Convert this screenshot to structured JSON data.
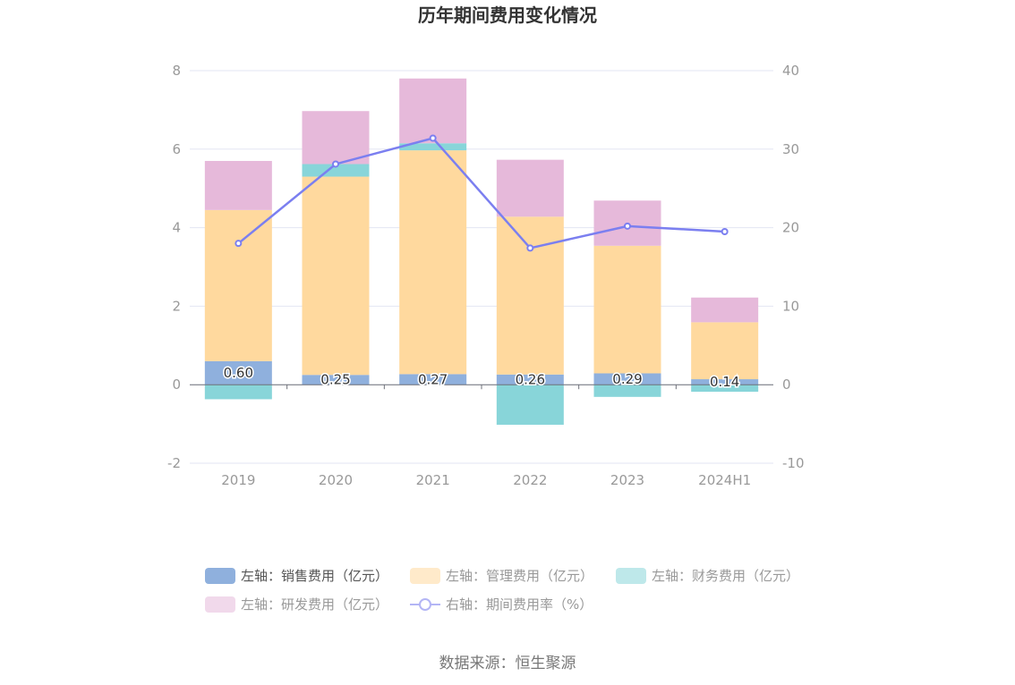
{
  "chart_data": {
    "type": "bar",
    "title": "历年期间费用变化情况",
    "categories": [
      "2019",
      "2020",
      "2021",
      "2022",
      "2023",
      "2024H1"
    ],
    "y_left": {
      "ylim": [
        -2,
        8
      ],
      "ticks": [
        "-2",
        "0",
        "2",
        "4",
        "6",
        "8"
      ]
    },
    "y_right": {
      "ylim": [
        -10,
        40
      ],
      "ticks": [
        "-10",
        "0",
        "10",
        "20",
        "30",
        "40"
      ]
    },
    "series": [
      {
        "name": "左轴：销售费用（亿元）",
        "type": "bar",
        "axis": "left",
        "color": "#8fb0dd",
        "values": [
          0.6,
          0.25,
          0.27,
          0.26,
          0.29,
          0.14
        ],
        "labels": [
          "0.60",
          "0.25",
          "0.27",
          "0.26",
          "0.29",
          "0.14"
        ]
      },
      {
        "name": "左轴：管理费用（亿元）",
        "type": "bar",
        "axis": "left",
        "color": "#ffd99e",
        "values": [
          3.85,
          5.05,
          5.7,
          4.02,
          3.25,
          1.45
        ]
      },
      {
        "name": "左轴：财务费用（亿元）",
        "type": "bar",
        "axis": "left",
        "color": "#88d5d9",
        "values": [
          -0.37,
          0.32,
          0.18,
          -1.02,
          -0.31,
          -0.18
        ]
      },
      {
        "name": "左轴：研发费用（亿元）",
        "type": "bar",
        "axis": "left",
        "color": "#e6b9da",
        "values": [
          1.25,
          1.35,
          1.65,
          1.45,
          1.15,
          0.63
        ]
      },
      {
        "name": "右轴：期间费用率（%）",
        "type": "line",
        "axis": "right",
        "color": "#7b7ff0",
        "values": [
          18.0,
          28.1,
          31.4,
          17.4,
          20.2,
          19.5
        ]
      }
    ],
    "legend_position": "bottom",
    "grid": true
  },
  "source": "数据来源：恒生聚源"
}
